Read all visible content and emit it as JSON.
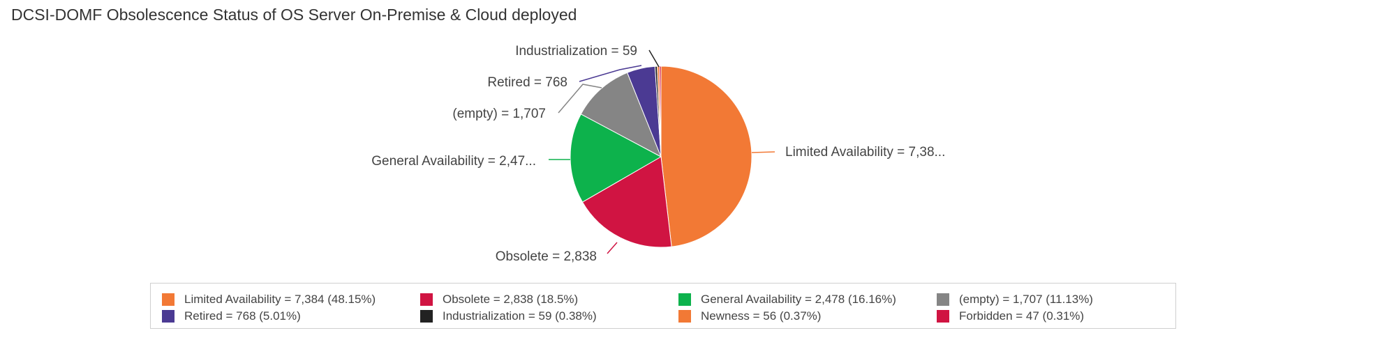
{
  "title": "DCSI-DOMF Obsolescence Status of OS Server On-Premise & Cloud deployed",
  "chart_data": {
    "type": "pie",
    "start": "top, clockwise",
    "slices": [
      {
        "name": "Limited Availability",
        "value": 7384,
        "percent": "48.15%",
        "color": "#f27935",
        "callout": "Limited Availability = 7,38...",
        "legend": "Limited Availability = 7,384 (48.15%)"
      },
      {
        "name": "Obsolete",
        "value": 2838,
        "percent": "18.5%",
        "color": "#d01442",
        "callout": "Obsolete = 2,838",
        "legend": "Obsolete = 2,838 (18.5%)"
      },
      {
        "name": "General Availability",
        "value": 2478,
        "percent": "16.16%",
        "color": "#0db24c",
        "callout": "General Availability = 2,47...",
        "legend": "General Availability = 2,478 (16.16%)"
      },
      {
        "name": "(empty)",
        "value": 1707,
        "percent": "11.13%",
        "color": "#858585",
        "callout": "(empty) = 1,707",
        "legend": "(empty) = 1,707 (11.13%)"
      },
      {
        "name": "Retired",
        "value": 768,
        "percent": "5.01%",
        "color": "#4b3a93",
        "callout": "Retired = 768",
        "legend": "Retired = 768 (5.01%)"
      },
      {
        "name": "Industrialization",
        "value": 59,
        "percent": "0.38%",
        "color": "#222222",
        "callout": "Industrialization = 59",
        "legend": "Industrialization = 59 (0.38%)"
      },
      {
        "name": "Newness",
        "value": 56,
        "percent": "0.37%",
        "color": "#f27935",
        "callout": "",
        "legend": "Newness = 56 (0.37%)"
      },
      {
        "name": "Forbidden",
        "value": 47,
        "percent": "0.31%",
        "color": "#d01442",
        "callout": "",
        "legend": "Forbidden = 47 (0.31%)"
      }
    ],
    "legend_position": "bottom"
  }
}
